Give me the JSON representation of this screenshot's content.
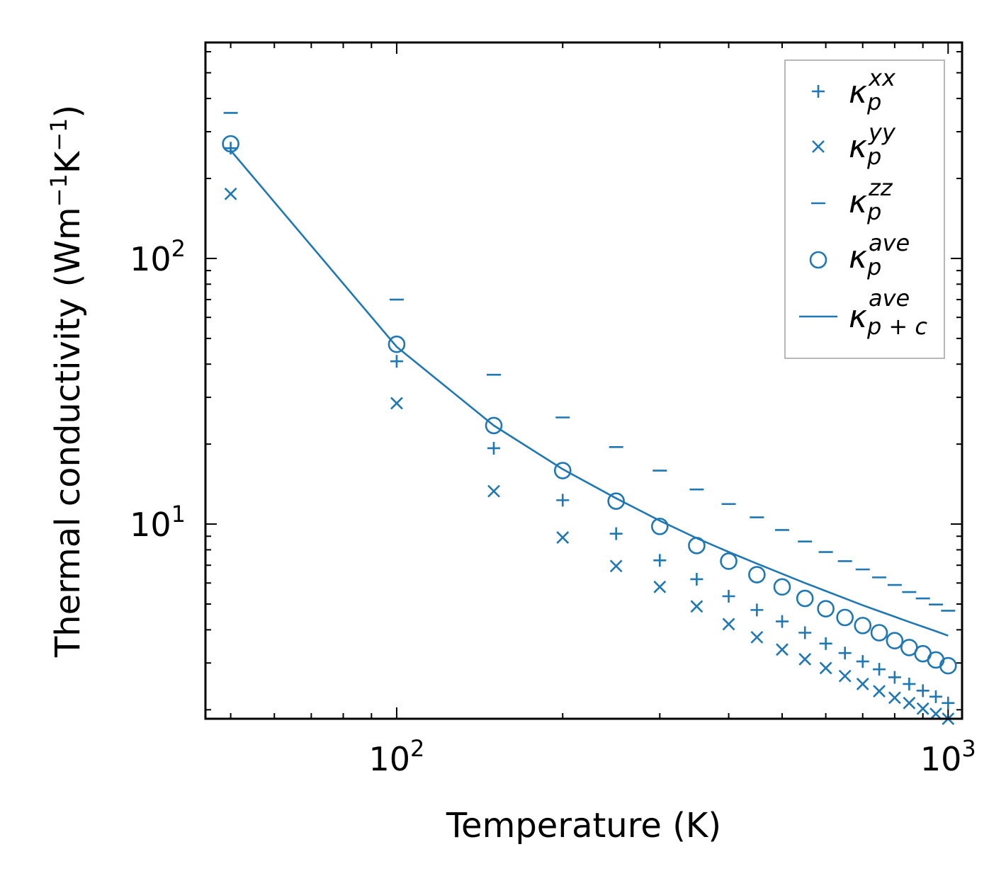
{
  "chart_data": {
    "type": "scatter",
    "xscale": "log",
    "yscale": "log",
    "xlim": [
      45,
      1060
    ],
    "ylim": [
      1.85,
      650
    ],
    "xlabel": "Temperature (K)",
    "ylabel_main": "Thermal conductivity (Wm",
    "ylabel_exp1": "−1",
    "ylabel_mid": "K",
    "ylabel_exp2": "−1",
    "ylabel_close": ")",
    "xticks": [
      {
        "base": "10",
        "exp": "2",
        "value": 100
      },
      {
        "base": "10",
        "exp": "3",
        "value": 1000
      }
    ],
    "yticks": [
      {
        "base": "10",
        "exp": "1",
        "value": 10
      },
      {
        "base": "10",
        "exp": "2",
        "value": 100
      }
    ],
    "x": [
      50,
      100,
      150,
      200,
      250,
      300,
      350,
      400,
      450,
      500,
      550,
      600,
      650,
      700,
      750,
      800,
      850,
      900,
      950,
      1000
    ],
    "series": [
      {
        "name": "kappa_p_xx",
        "symbol": "κ",
        "sub": "p",
        "sup": "xx",
        "marker": "plus",
        "values": [
          260,
          41,
          19.3,
          12.3,
          9.2,
          7.3,
          6.2,
          5.35,
          4.75,
          4.3,
          3.9,
          3.55,
          3.27,
          3.04,
          2.84,
          2.65,
          2.5,
          2.36,
          2.24,
          2.12
        ]
      },
      {
        "name": "kappa_p_yy",
        "symbol": "κ",
        "sub": "p",
        "sup": "yy",
        "marker": "x",
        "values": [
          175,
          28.5,
          13.3,
          8.9,
          6.95,
          5.8,
          4.9,
          4.2,
          3.75,
          3.37,
          3.1,
          2.87,
          2.68,
          2.5,
          2.35,
          2.22,
          2.12,
          2.02,
          1.93,
          1.85
        ]
      },
      {
        "name": "kappa_p_zz",
        "symbol": "κ",
        "sub": "p",
        "sup": "zz",
        "marker": "hline",
        "values": [
          353,
          70,
          36.5,
          25.2,
          19.5,
          15.9,
          13.5,
          11.9,
          10.6,
          9.5,
          8.6,
          7.85,
          7.25,
          6.75,
          6.3,
          5.9,
          5.55,
          5.25,
          4.98,
          4.72
        ]
      },
      {
        "name": "kappa_p_ave",
        "symbol": "κ",
        "sub": "p",
        "sup": "ave",
        "marker": "circle",
        "values": [
          270,
          47.5,
          23.5,
          15.9,
          12.2,
          9.8,
          8.3,
          7.25,
          6.45,
          5.8,
          5.25,
          4.8,
          4.45,
          4.15,
          3.9,
          3.64,
          3.43,
          3.25,
          3.08,
          2.93
        ]
      },
      {
        "name": "kappa_p+c_ave",
        "symbol": "κ",
        "sub": "p + c",
        "sup": "ave",
        "marker": "line",
        "values": [
          255,
          46.5,
          23.5,
          16.1,
          12.5,
          10.3,
          8.85,
          7.85,
          7.1,
          6.5,
          6.0,
          5.6,
          5.25,
          4.95,
          4.7,
          4.48,
          4.28,
          4.11,
          3.95,
          3.8
        ]
      }
    ],
    "color": "#1f77b4",
    "legend_position": "top-right"
  }
}
